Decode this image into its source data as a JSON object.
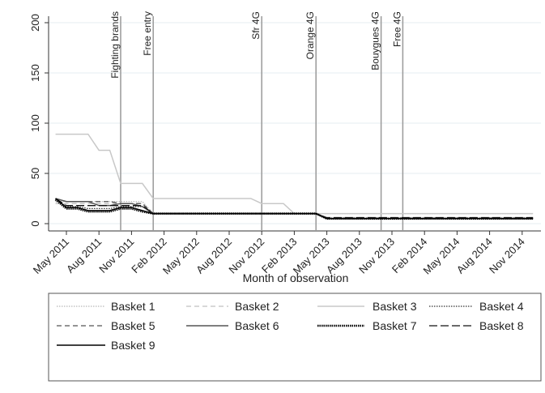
{
  "chart_data": {
    "type": "line",
    "categories": [
      null,
      "May 2011",
      null,
      null,
      "Aug 2011",
      null,
      null,
      "Nov 2011",
      null,
      null,
      "Feb 2012",
      null,
      null,
      "May 2012",
      null,
      null,
      "Aug 2012",
      null,
      null,
      "Nov 2012",
      null,
      null,
      "Feb 2013",
      null,
      null,
      "May 2013",
      null,
      null,
      "Aug 2013",
      null,
      null,
      "Nov 2013",
      null,
      null,
      "Feb 2014",
      null,
      null,
      "May 2014",
      null,
      null,
      "Aug 2014",
      null,
      null,
      "Nov 2014",
      null
    ],
    "x_label": "Month of observation",
    "ylim": [
      0,
      200
    ],
    "yticks": [
      0,
      50,
      100,
      150,
      200
    ],
    "grid": true,
    "annotations": [
      {
        "label": "Fighting brands",
        "at": 6
      },
      {
        "label": "Free entry",
        "at": 9
      },
      {
        "label": "Sfr 4G",
        "at": 19
      },
      {
        "label": "Orange 4G",
        "at": 24
      },
      {
        "label": "Bouygues 4G",
        "at": 30
      },
      {
        "label": "Free 4G",
        "at": 32
      }
    ],
    "series": [
      {
        "name": "Basket 1",
        "color": "#b8b8b8",
        "style": "dotted",
        "values": [
          22,
          22,
          22,
          22,
          22,
          22,
          22,
          22,
          22,
          10,
          10,
          10,
          10,
          10,
          10,
          10,
          10,
          10,
          10,
          10,
          10,
          10,
          10,
          10,
          10,
          10,
          10,
          10,
          10,
          10,
          10,
          10,
          10,
          10,
          10,
          10,
          10,
          10,
          10,
          10,
          10,
          10,
          10,
          10,
          10
        ]
      },
      {
        "name": "Basket 2",
        "color": "#c0c0c0",
        "style": "dashed",
        "values": [
          20,
          20,
          20,
          20,
          20,
          20,
          20,
          20,
          20,
          10,
          10,
          10,
          10,
          10,
          10,
          10,
          10,
          10,
          10,
          10,
          10,
          10,
          10,
          10,
          10,
          6,
          6,
          6,
          6,
          6,
          6,
          6,
          6,
          6,
          6,
          6,
          6,
          6,
          6,
          6,
          6,
          6,
          6,
          6,
          6
        ]
      },
      {
        "name": "Basket 3",
        "color": "#c8c8c8",
        "style": "solid",
        "values": [
          89,
          89,
          89,
          89,
          73,
          73,
          40,
          40,
          40,
          25,
          25,
          25,
          25,
          25,
          25,
          25,
          25,
          25,
          25,
          20,
          20,
          20,
          10,
          10,
          10,
          10,
          10,
          10,
          10,
          10,
          10,
          10,
          10,
          10,
          10,
          10,
          10,
          10,
          10,
          10,
          10,
          10,
          10,
          10,
          10
        ]
      },
      {
        "name": "Basket 4",
        "color": "#333333",
        "style": "dotted",
        "values": [
          25,
          17,
          17,
          15,
          15,
          15,
          17,
          17,
          17,
          10,
          10,
          10,
          10,
          10,
          10,
          10,
          10,
          10,
          10,
          10,
          10,
          10,
          10,
          10,
          10,
          5,
          5,
          5,
          5,
          5,
          5,
          5,
          5,
          5,
          5,
          5,
          5,
          5,
          5,
          5,
          5,
          5,
          5,
          5,
          5
        ]
      },
      {
        "name": "Basket 5",
        "color": "#555555",
        "style": "dashed",
        "values": [
          25,
          22,
          22,
          22,
          22,
          22,
          20,
          20,
          20,
          10,
          10,
          10,
          10,
          10,
          10,
          10,
          10,
          10,
          10,
          10,
          10,
          10,
          10,
          10,
          10,
          5,
          5,
          5,
          5,
          5,
          5,
          5,
          5,
          5,
          5,
          5,
          5,
          5,
          5,
          5,
          5,
          5,
          5,
          5,
          5
        ]
      },
      {
        "name": "Basket 6",
        "color": "#555555",
        "style": "solid",
        "values": [
          25,
          22,
          22,
          22,
          18,
          18,
          20,
          20,
          17,
          10,
          10,
          10,
          10,
          10,
          10,
          10,
          10,
          10,
          10,
          10,
          10,
          10,
          10,
          10,
          10,
          5,
          5,
          5,
          5,
          5,
          5,
          5,
          5,
          5,
          5,
          5,
          5,
          5,
          5,
          5,
          5,
          5,
          5,
          5,
          5
        ]
      },
      {
        "name": "Basket 7",
        "color": "#000000",
        "style": "thickdot",
        "values": [
          24,
          15,
          15,
          12,
          12,
          12,
          15,
          15,
          12,
          10,
          10,
          10,
          10,
          10,
          10,
          10,
          10,
          10,
          10,
          10,
          10,
          10,
          10,
          10,
          10,
          5,
          5,
          5,
          5,
          5,
          5,
          5,
          5,
          5,
          5,
          5,
          5,
          5,
          5,
          5,
          5,
          5,
          5,
          5,
          5
        ]
      },
      {
        "name": "Basket 8",
        "color": "#111111",
        "style": "longdash",
        "values": [
          25,
          18,
          18,
          18,
          18,
          18,
          18,
          18,
          18,
          10,
          10,
          10,
          10,
          10,
          10,
          10,
          10,
          10,
          10,
          10,
          10,
          10,
          10,
          10,
          10,
          6,
          6,
          6,
          6,
          6,
          6,
          6,
          6,
          6,
          6,
          6,
          6,
          6,
          6,
          6,
          6,
          6,
          6,
          6,
          6
        ]
      },
      {
        "name": "Basket 9",
        "color": "#000000",
        "style": "solid",
        "values": [
          25,
          16,
          16,
          13,
          13,
          13,
          16,
          16,
          13,
          10,
          10,
          10,
          10,
          10,
          10,
          10,
          10,
          10,
          10,
          10,
          10,
          10,
          10,
          10,
          10,
          5,
          5,
          5,
          5,
          5,
          5,
          5,
          5,
          5,
          5,
          5,
          5,
          5,
          5,
          5,
          5,
          5,
          5,
          5,
          5
        ]
      }
    ]
  }
}
